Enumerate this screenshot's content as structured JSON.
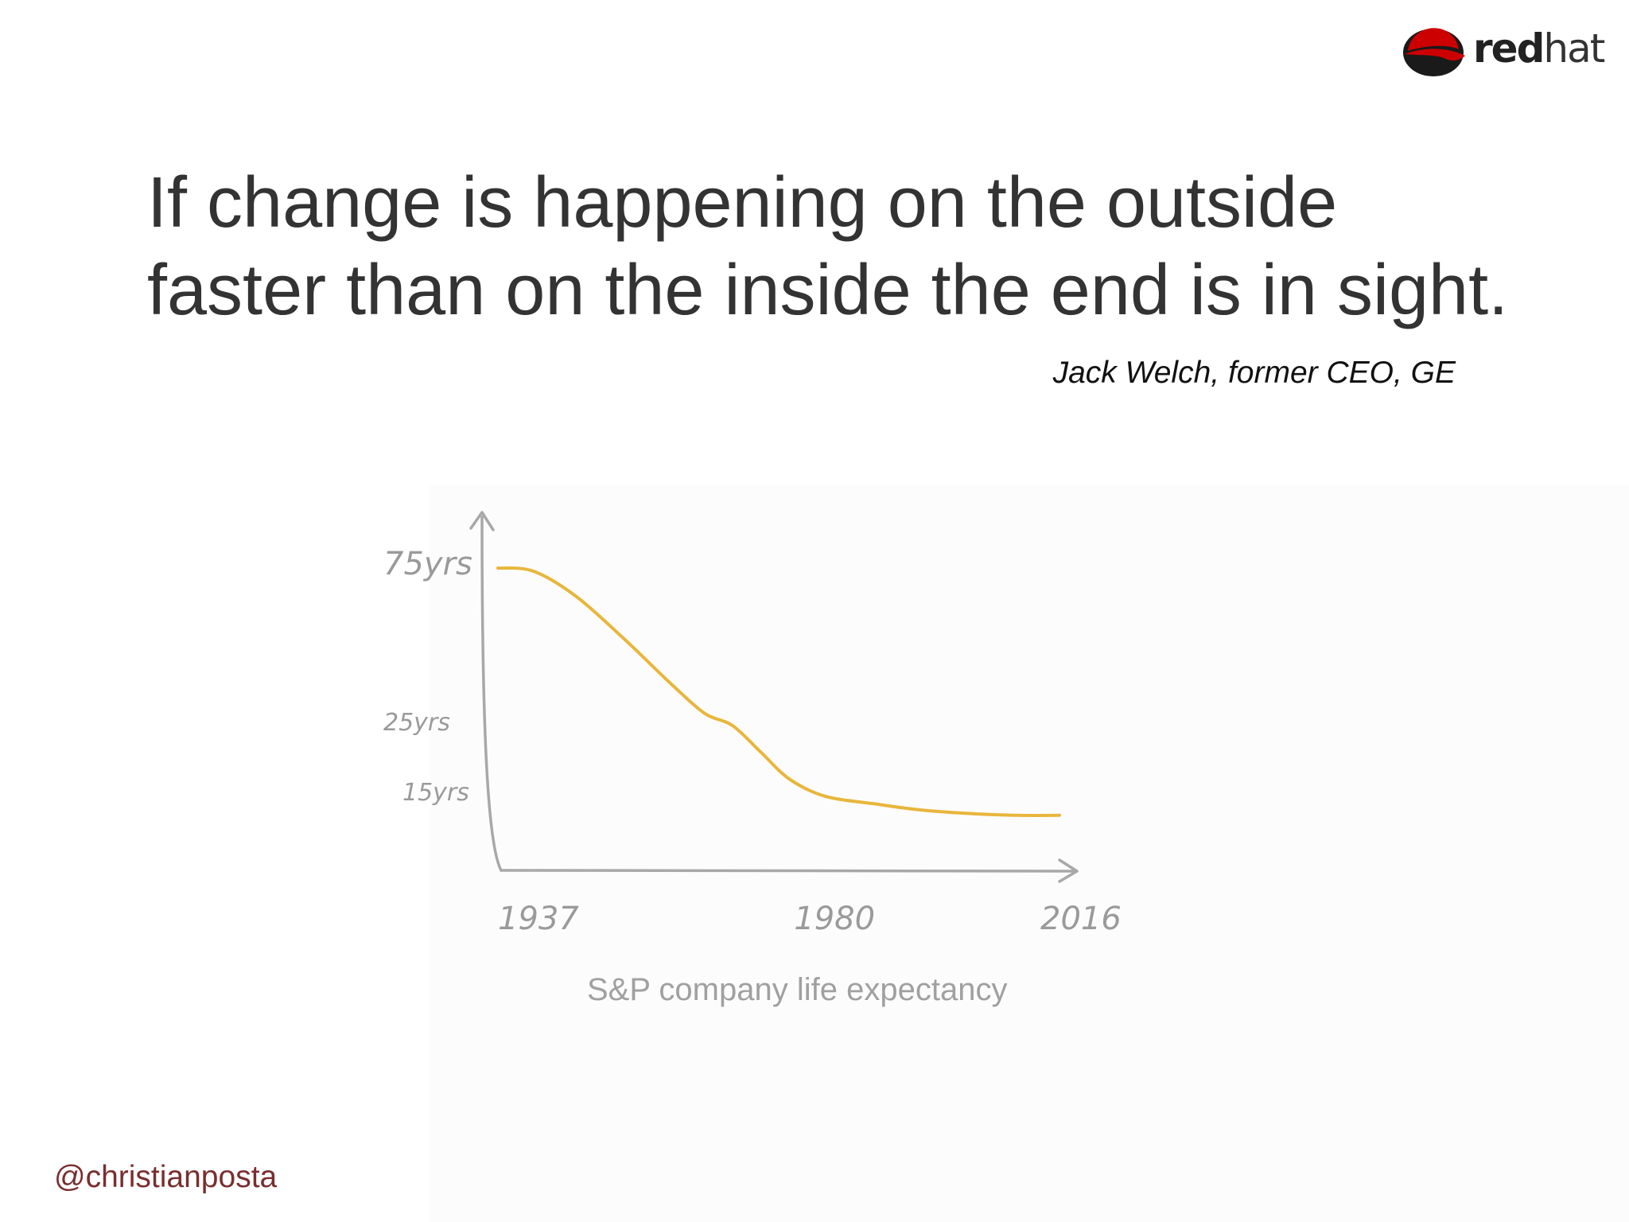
{
  "slide": {
    "logo": {
      "icon": "red-hat-shadowman-icon",
      "text_bold": "red",
      "text_light": "hat"
    },
    "quote_lines": [
      "If change is happening on the outside",
      "faster than on the inside the end is in sight."
    ],
    "attribution": "Jack Welch, former CEO, GE",
    "handle": "@christianposta"
  },
  "chart_data": {
    "type": "line",
    "title": "S&P company life expectancy",
    "x_tick_labels": [
      "1937",
      "1980",
      "2016"
    ],
    "y_tick_labels": [
      "75yrs",
      "25yrs",
      "15yrs"
    ],
    "y_ticks": [
      75,
      25,
      15
    ],
    "x_ticks": [
      1937,
      1980,
      2016
    ],
    "xlim": [
      1937,
      2016
    ],
    "series": [
      {
        "color": "#e8b63c",
        "points": [
          [
            1937,
            75
          ],
          [
            1942,
            74
          ],
          [
            1948,
            66
          ],
          [
            1955,
            52
          ],
          [
            1961,
            39
          ],
          [
            1966,
            29
          ],
          [
            1970,
            25
          ],
          [
            1974,
            21
          ],
          [
            1978,
            17
          ],
          [
            1983,
            13
          ],
          [
            1990,
            9
          ],
          [
            1996,
            6
          ],
          [
            2003,
            4
          ],
          [
            2010,
            3
          ],
          [
            2016,
            3
          ]
        ]
      }
    ],
    "grid": false,
    "legend": "none"
  }
}
